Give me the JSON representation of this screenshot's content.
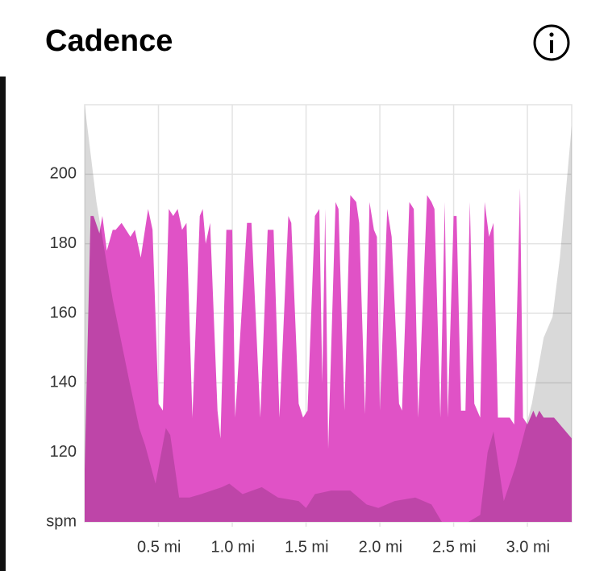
{
  "chart_data": {
    "type": "area",
    "title": "Cadence",
    "xlim": [
      0,
      3.3
    ],
    "ylim": [
      100,
      220
    ],
    "xticks": [
      {
        "value": 0.5,
        "label": "0.5 mi"
      },
      {
        "value": 1.0,
        "label": "1.0 mi"
      },
      {
        "value": 1.5,
        "label": "1.5 mi"
      },
      {
        "value": 2.0,
        "label": "2.0 mi"
      },
      {
        "value": 2.5,
        "label": "2.5 mi"
      },
      {
        "value": 3.0,
        "label": "3.0 mi"
      }
    ],
    "yticks": [
      {
        "value": 100,
        "label": "spm"
      },
      120,
      140,
      160,
      180,
      200
    ],
    "grid": true,
    "series": [
      {
        "color": "#e052c6",
        "opacity": 1,
        "x": [
          0.0,
          0.04,
          0.06,
          0.1,
          0.12,
          0.15,
          0.19,
          0.21,
          0.25,
          0.31,
          0.34,
          0.38,
          0.43,
          0.46,
          0.5,
          0.53,
          0.57,
          0.6,
          0.63,
          0.66,
          0.69,
          0.73,
          0.78,
          0.8,
          0.82,
          0.85,
          0.9,
          0.92,
          0.96,
          1.0,
          1.02,
          1.1,
          1.13,
          1.19,
          1.24,
          1.28,
          1.32,
          1.38,
          1.4,
          1.45,
          1.48,
          1.51,
          1.56,
          1.59,
          1.61,
          1.63,
          1.65,
          1.7,
          1.72,
          1.76,
          1.8,
          1.84,
          1.86,
          1.9,
          1.93,
          1.96,
          1.98,
          2.0,
          2.05,
          2.08,
          2.13,
          2.15,
          2.2,
          2.23,
          2.26,
          2.32,
          2.35,
          2.37,
          2.41,
          2.44,
          2.46,
          2.5,
          2.52,
          2.55,
          2.58,
          2.61,
          2.64,
          2.68,
          2.71,
          2.74,
          2.77,
          2.8,
          2.88,
          2.91,
          2.95,
          2.97,
          3.0,
          3.04,
          3.06,
          3.08,
          3.11,
          3.18,
          3.3
        ],
        "values": [
          115,
          188,
          188,
          183,
          188,
          178,
          184,
          184,
          186,
          182,
          184,
          176,
          190,
          184,
          134,
          132,
          190,
          188,
          190,
          184,
          186,
          130,
          188,
          190,
          180,
          186,
          132,
          124,
          184,
          184,
          130,
          186,
          186,
          130,
          184,
          184,
          130,
          188,
          186,
          134,
          130,
          132,
          188,
          190,
          140,
          190,
          121,
          192,
          190,
          132,
          194,
          192,
          186,
          131,
          192,
          184,
          182,
          132,
          190,
          182,
          134,
          132,
          192,
          190,
          130,
          194,
          192,
          190,
          130,
          192,
          130,
          188,
          188,
          132,
          132,
          192,
          134,
          130,
          192,
          182,
          186,
          130,
          130,
          128,
          196,
          130,
          128,
          132,
          130,
          132,
          130,
          130,
          124
        ]
      },
      {
        "color": "#000000",
        "opacity": 0.15,
        "x": [
          0,
          0.08,
          0.19,
          0.3,
          0.37,
          0.41,
          0.48,
          0.55,
          0.58,
          0.64,
          0.71,
          0.79,
          0.93,
          0.98,
          1.07,
          1.2,
          1.31,
          1.45,
          1.5,
          1.56,
          1.67,
          1.8,
          1.91,
          1.99,
          2.1,
          2.24,
          2.35,
          2.42,
          2.6,
          2.68,
          2.73,
          2.77,
          2.84,
          2.92,
          3.03,
          3.11,
          3.17,
          3.22,
          3.3
        ],
        "values": [
          220,
          192,
          164,
          141,
          127,
          122,
          111,
          127,
          125,
          107,
          107,
          108,
          110,
          111,
          108,
          110,
          107,
          106,
          104,
          108,
          109,
          109,
          105,
          104,
          106,
          107,
          105,
          100,
          100,
          102,
          120,
          126,
          106,
          116,
          134,
          153,
          159,
          176,
          214
        ]
      }
    ]
  }
}
